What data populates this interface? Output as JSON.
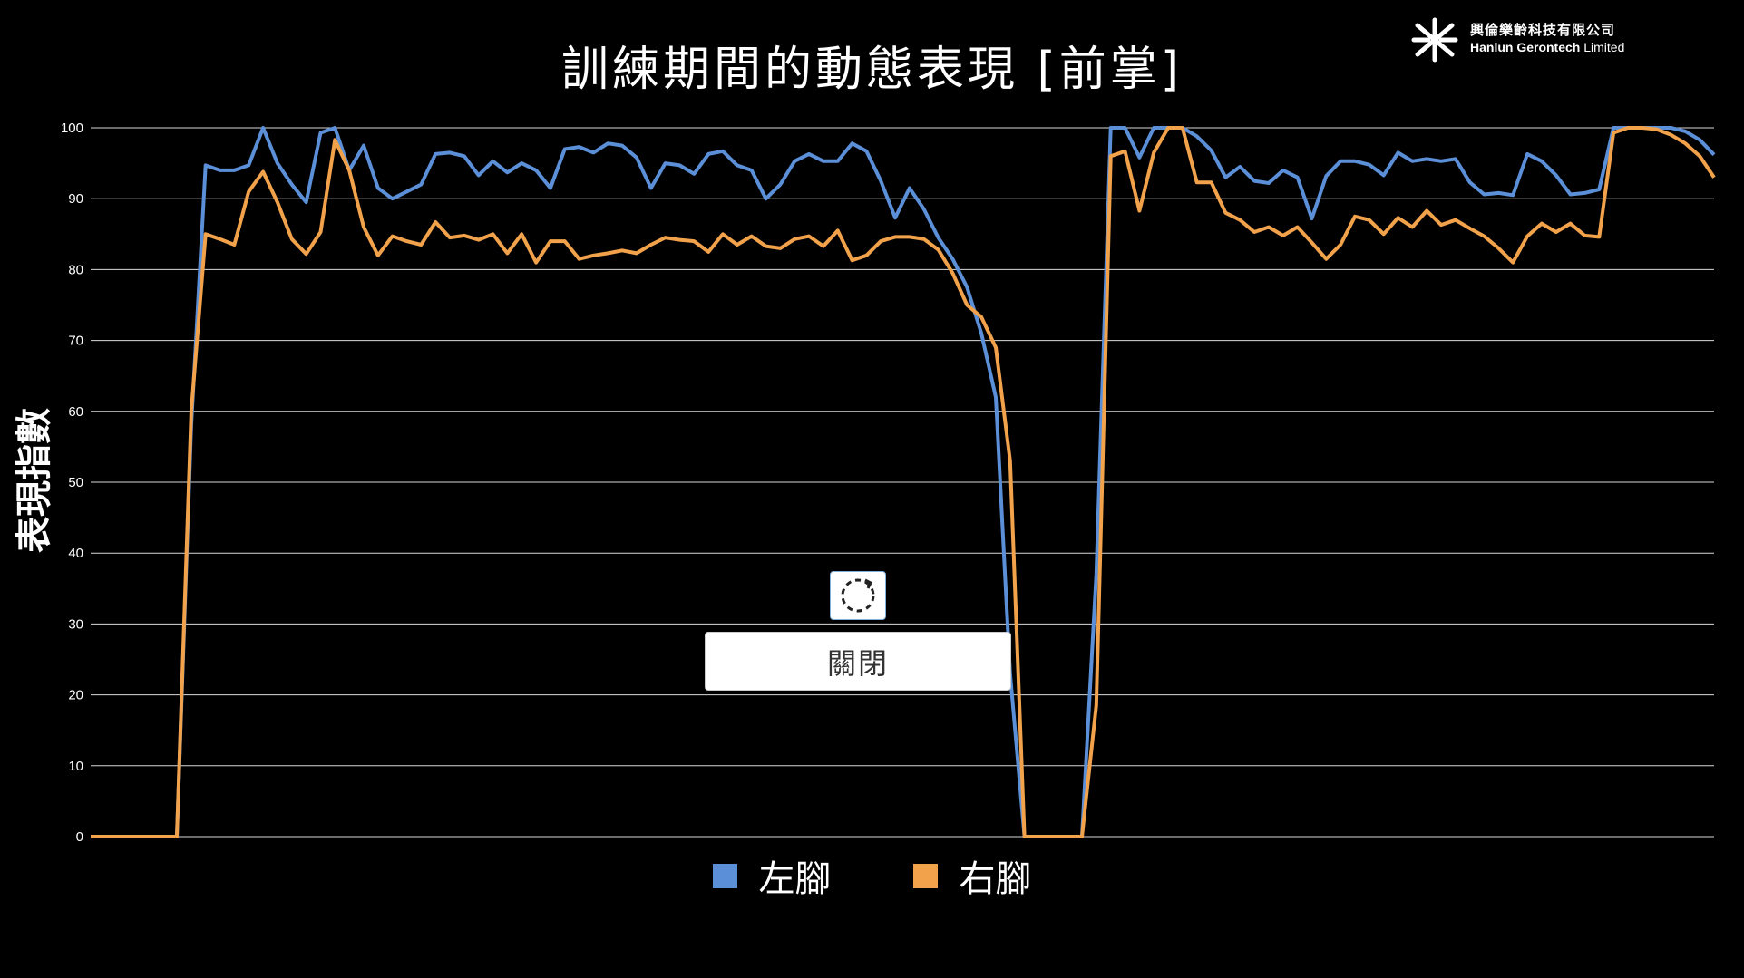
{
  "page": {
    "title": "訓練期間的動態表現 [前掌]",
    "logo_cn": "興倫樂齡科技有限公司",
    "logo_en_bold": "Hanlun Gerontech",
    "logo_en_rest": " Limited",
    "close_label": "關閉",
    "refresh_icon": "refresh-icon"
  },
  "chart_data": {
    "type": "line",
    "title": "訓練期間的動態表現 [前掌]",
    "ylabel": "表現指數",
    "xlabel": "",
    "ylim": [
      0,
      100
    ],
    "yticks": [
      0,
      10,
      20,
      30,
      40,
      50,
      60,
      70,
      80,
      90,
      100
    ],
    "grid": true,
    "legend_position": "bottom-center",
    "x": [
      0,
      1,
      2,
      3,
      4,
      5,
      6,
      7,
      8,
      9,
      10,
      11,
      12,
      13,
      14,
      15,
      16,
      17,
      18,
      19,
      20,
      21,
      22,
      23,
      24,
      25,
      26,
      27,
      28,
      29,
      30,
      31,
      32,
      33,
      34,
      35,
      36,
      37,
      38,
      39,
      40,
      41,
      42,
      43,
      44,
      45,
      46,
      47,
      48,
      49,
      50,
      51,
      52,
      53,
      54,
      55,
      56,
      57,
      58,
      59,
      60,
      61,
      62,
      63,
      64,
      65,
      66,
      67,
      68,
      69,
      70,
      71,
      72,
      73,
      74,
      75,
      76,
      77,
      78,
      79,
      80,
      81,
      82,
      83,
      84,
      85,
      86,
      87,
      88,
      89,
      90,
      91,
      92,
      93,
      94,
      95,
      96,
      97,
      98,
      99,
      100,
      101,
      102,
      103,
      104,
      105,
      106,
      107,
      108,
      109,
      110,
      111,
      112,
      113
    ],
    "series": [
      {
        "name": "左腳",
        "color": "#5b8fd8",
        "values": [
          0,
          0,
          0,
          0,
          0,
          0,
          0,
          58,
          94.7,
          94,
          94,
          94.7,
          100,
          95,
          92,
          89.5,
          99.3,
          100,
          94,
          97.5,
          91.5,
          90,
          91,
          92,
          96.3,
          96.5,
          96,
          93.3,
          95.3,
          93.7,
          95,
          94,
          91.5,
          97,
          97.3,
          96.5,
          97.8,
          97.5,
          95.8,
          91.5,
          95,
          94.7,
          93.5,
          96.3,
          96.7,
          94.7,
          94,
          90,
          92,
          95.3,
          96.3,
          95.3,
          95.3,
          97.8,
          96.7,
          92.5,
          87.3,
          91.5,
          88.5,
          84.5,
          81.5,
          77.5,
          71,
          62,
          23,
          0,
          0,
          0,
          0,
          0,
          37,
          100,
          100,
          95.8,
          100,
          100,
          100,
          98.8,
          96.8,
          93,
          94.5,
          92.5,
          92.2,
          94,
          93,
          87.2,
          93.2,
          95.3,
          95.3,
          94.8,
          93.3,
          96.5,
          95.3,
          95.6,
          95.3,
          95.6,
          92.3,
          90.6,
          90.8,
          90.5,
          96.3,
          95.3,
          93.3,
          90.6,
          90.8,
          91.3,
          100,
          100,
          100,
          100,
          100,
          99.5,
          98.3,
          96.2
        ]
      },
      {
        "name": "右腳",
        "color": "#f2a24b",
        "values": [
          0,
          0,
          0,
          0,
          0,
          0,
          0,
          60,
          85,
          84.3,
          83.5,
          91,
          93.8,
          89.5,
          84.3,
          82.2,
          85.3,
          98.3,
          94,
          86,
          82,
          84.7,
          84,
          83.5,
          86.7,
          84.5,
          84.8,
          84.2,
          85,
          82.3,
          85,
          81,
          84,
          84,
          81.5,
          82,
          82.3,
          82.7,
          82.3,
          83.5,
          84.5,
          84.2,
          84,
          82.5,
          85,
          83.5,
          84.7,
          83.3,
          83,
          84.3,
          84.7,
          83.3,
          85.5,
          81.3,
          82,
          84,
          84.6,
          84.6,
          84.3,
          82.8,
          79.5,
          75,
          73.3,
          69,
          53,
          0,
          0,
          0,
          0,
          0,
          18.5,
          96,
          96.7,
          88.3,
          96.5,
          100,
          100,
          92.3,
          92.3,
          88,
          87,
          85.3,
          86,
          84.8,
          86,
          83.8,
          81.5,
          83.5,
          87.5,
          87,
          85,
          87.3,
          86,
          88.3,
          86.3,
          87,
          85.8,
          84.7,
          83,
          81,
          84.7,
          86.5,
          85.3,
          86.5,
          84.8,
          84.6,
          99.3,
          100,
          100,
          99.8,
          99,
          97.8,
          96,
          93
        ]
      }
    ]
  }
}
